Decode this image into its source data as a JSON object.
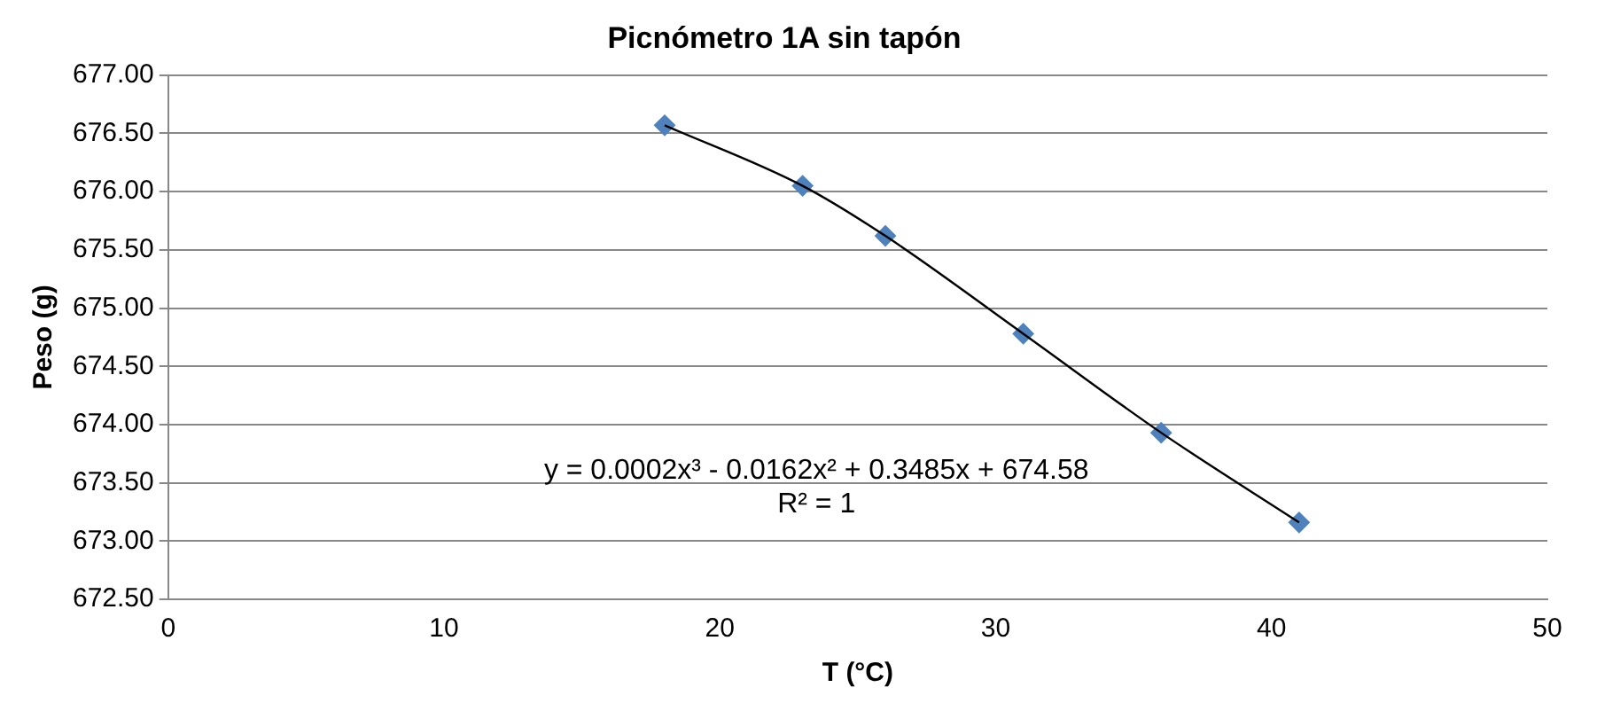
{
  "chart_data": {
    "type": "scatter",
    "title": "Picnómetro 1A sin tapón",
    "xlabel": "T (°C)",
    "ylabel": "Peso (g)",
    "series": [
      {
        "type": "scatter",
        "marker": "diamond",
        "color": "#4f81bd",
        "x": [
          18,
          23,
          26,
          31,
          36,
          41
        ],
        "values": [
          676.57,
          676.05,
          675.62,
          674.78,
          673.93,
          673.16
        ]
      },
      {
        "type": "line",
        "marker": "none",
        "color": "#000000",
        "x": [
          18,
          23,
          26,
          31,
          36,
          41
        ],
        "values": [
          676.57,
          676.05,
          675.62,
          674.78,
          673.93,
          673.16
        ]
      }
    ],
    "xlim": [
      0,
      50
    ],
    "xticks": [
      0,
      10,
      20,
      30,
      40,
      50
    ],
    "ylim": [
      672.5,
      677
    ],
    "yticks": [
      {
        "value": 672.5,
        "label": "672.50"
      },
      {
        "value": 673,
        "label": "673.00"
      },
      {
        "value": 673.5,
        "label": "673.50"
      },
      {
        "value": 674,
        "label": "674.00"
      },
      {
        "value": 674.5,
        "label": "674.50"
      },
      {
        "value": 675,
        "label": "675.00"
      },
      {
        "value": 675.5,
        "label": "675.50"
      },
      {
        "value": 676,
        "label": "676.00"
      },
      {
        "value": 676.5,
        "label": "676.50"
      },
      {
        "value": 677,
        "label": "677.00"
      }
    ],
    "grid": "y",
    "legend": false,
    "line_style": "solid",
    "annotations": [
      "y = 0.0002x³ - 0.0162x² + 0.3485x + 674.58",
      "R² = 1"
    ]
  }
}
